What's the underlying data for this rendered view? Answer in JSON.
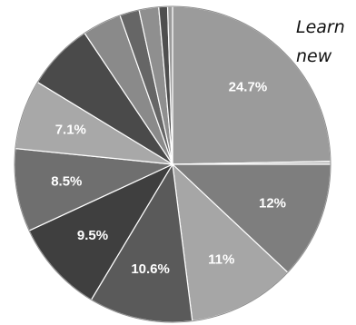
{
  "side_text": {
    "line1": "Learn",
    "line2": "new"
  },
  "chart_data": {
    "type": "pie",
    "title": "",
    "start_angle_deg": 0,
    "direction": "clockwise",
    "slices": [
      {
        "label": "24.7%",
        "value": 24.7,
        "color": "#9b9b9b"
      },
      {
        "label": "",
        "value": 0.3,
        "color": "#b8b8b8"
      },
      {
        "label": "12%",
        "value": 12.0,
        "color": "#7e7e7e"
      },
      {
        "label": "11%",
        "value": 11.0,
        "color": "#a6a6a6"
      },
      {
        "label": "10.6%",
        "value": 10.6,
        "color": "#5a5a5a"
      },
      {
        "label": "9.5%",
        "value": 9.5,
        "color": "#3f3f3f"
      },
      {
        "label": "8.5%",
        "value": 8.5,
        "color": "#6f6f6f"
      },
      {
        "label": "7.1%",
        "value": 7.1,
        "color": "#a8a8a8"
      },
      {
        "label": "",
        "value": 6.9,
        "color": "#4a4a4a"
      },
      {
        "label": "",
        "value": 4.0,
        "color": "#8a8a8a"
      },
      {
        "label": "",
        "value": 2.0,
        "color": "#666666"
      },
      {
        "label": "",
        "value": 2.0,
        "color": "#8f8f8f"
      },
      {
        "label": "",
        "value": 0.9,
        "color": "#4f4f4f"
      },
      {
        "label": "",
        "value": 0.5,
        "color": "#9a9a9a"
      }
    ],
    "slice_border_color": "#ffffff",
    "outline_color": "#8c8c8c"
  }
}
